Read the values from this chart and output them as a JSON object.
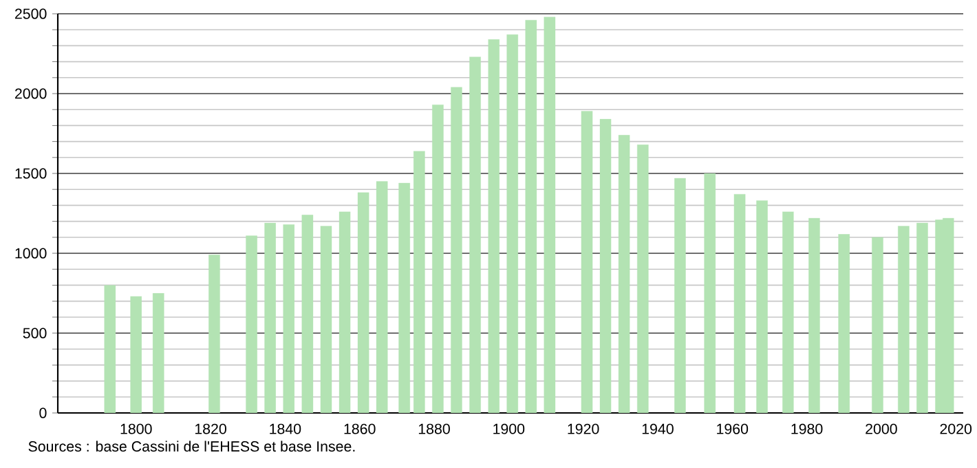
{
  "chart_data": {
    "type": "bar",
    "color": "#b3e3b3",
    "x": [
      1793,
      1800,
      1806,
      1821,
      1831,
      1836,
      1841,
      1846,
      1851,
      1856,
      1861,
      1866,
      1872,
      1876,
      1881,
      1886,
      1891,
      1896,
      1901,
      1906,
      1911,
      1921,
      1926,
      1931,
      1936,
      1946,
      1954,
      1962,
      1968,
      1975,
      1982,
      1990,
      1999,
      2006,
      2011,
      2016,
      2018
    ],
    "values": [
      800,
      730,
      750,
      990,
      1110,
      1190,
      1180,
      1240,
      1170,
      1260,
      1380,
      1450,
      1440,
      1640,
      1930,
      2040,
      2230,
      2340,
      2370,
      2460,
      2480,
      1890,
      1840,
      1740,
      1680,
      1470,
      1500,
      1370,
      1330,
      1260,
      1220,
      1120,
      1100,
      1170,
      1190,
      1210,
      1220
    ],
    "xlim": [
      1779,
      2022
    ],
    "ylim": [
      0,
      2500
    ],
    "xticks": [
      1800,
      1820,
      1840,
      1860,
      1880,
      1900,
      1920,
      1940,
      1960,
      1980,
      2000,
      2020
    ],
    "yticks": [
      0,
      500,
      1000,
      1500,
      2000,
      2500
    ],
    "grid": "y",
    "annotations": [
      "Sources : base Cassini de l'EHESS et base Insee."
    ]
  }
}
